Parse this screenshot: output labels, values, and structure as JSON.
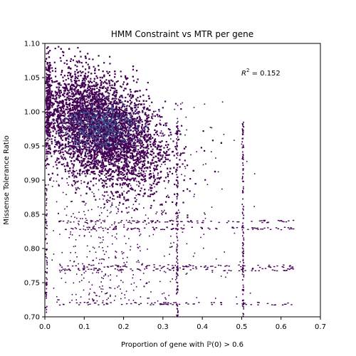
{
  "chart_data": {
    "type": "heatmap",
    "title": "HMM Constraint vs MTR per gene",
    "xlabel": "Proportion of gene with ℙ(0) > 0.6",
    "ylabel": "Missense Tolerance Ratio",
    "xlim": [
      0.0,
      0.7
    ],
    "ylim": [
      0.7,
      1.1
    ],
    "xticks": [
      "0.0",
      "0.1",
      "0.2",
      "0.3",
      "0.4",
      "0.5",
      "0.6",
      "0.7"
    ],
    "yticks": [
      "0.70",
      "0.75",
      "0.80",
      "0.85",
      "0.90",
      "0.95",
      "1.00",
      "1.05",
      "1.10"
    ],
    "grid": false,
    "annotation": {
      "text_prefix": "R",
      "superscript": "2",
      "text_suffix": " = 0.152",
      "x": 0.5,
      "y": 1.05
    },
    "density": {
      "colormap": "viridis",
      "low_color": "#440154",
      "high_color": "#3b528b",
      "core_center": [
        0.14,
        0.975
      ],
      "core_spread": [
        0.09,
        0.045
      ]
    }
  }
}
